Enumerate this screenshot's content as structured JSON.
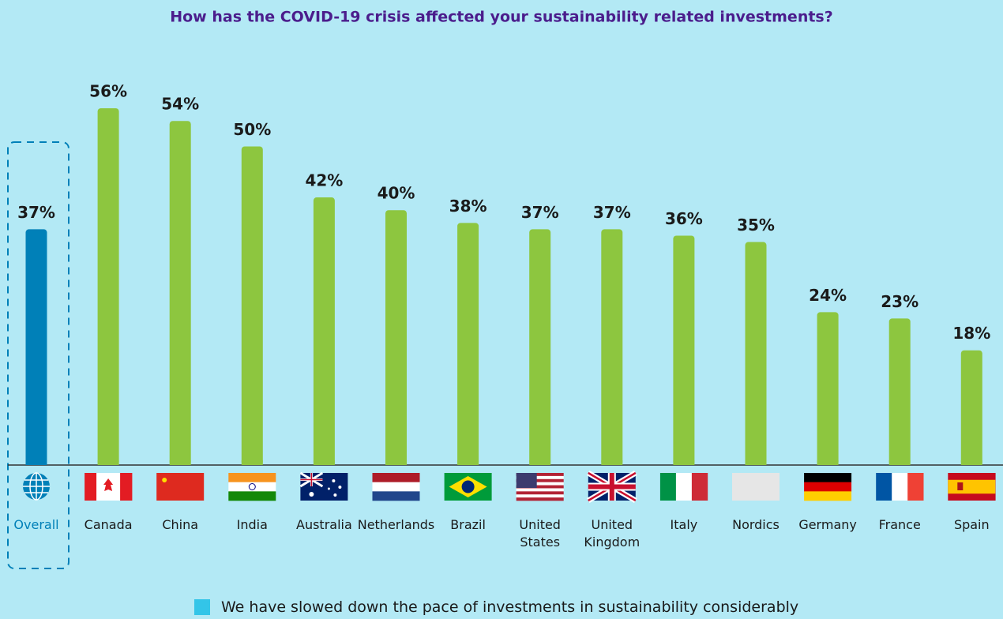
{
  "chart_data": {
    "type": "bar",
    "title": "How has the COVID-19 crisis affected your sustainability related investments?",
    "categories": [
      "Overall",
      "Canada",
      "China",
      "India",
      "Australia",
      "Netherlands",
      "Brazil",
      "United States",
      "United Kingdom",
      "Italy",
      "Nordics",
      "Germany",
      "France",
      "Spain"
    ],
    "series": [
      {
        "name": "We have slowed down the pace of investments in sustainability considerably",
        "color": "#33c5e8",
        "values": [
          37,
          56,
          54,
          50,
          42,
          40,
          38,
          37,
          37,
          36,
          35,
          24,
          23,
          18
        ],
        "value_labels": [
          "37%",
          "56%",
          "54%",
          "50%",
          "42%",
          "40%",
          "38%",
          "37%",
          "37%",
          "36%",
          "35%",
          "24%",
          "23%",
          "18%"
        ],
        "colors": [
          "#0080b8",
          "#8dc63f",
          "#8dc63f",
          "#8dc63f",
          "#8dc63f",
          "#8dc63f",
          "#8dc63f",
          "#8dc63f",
          "#8dc63f",
          "#8dc63f",
          "#8dc63f",
          "#8dc63f",
          "#8dc63f",
          "#8dc63f"
        ]
      }
    ],
    "legend": "bottom"
  }
}
